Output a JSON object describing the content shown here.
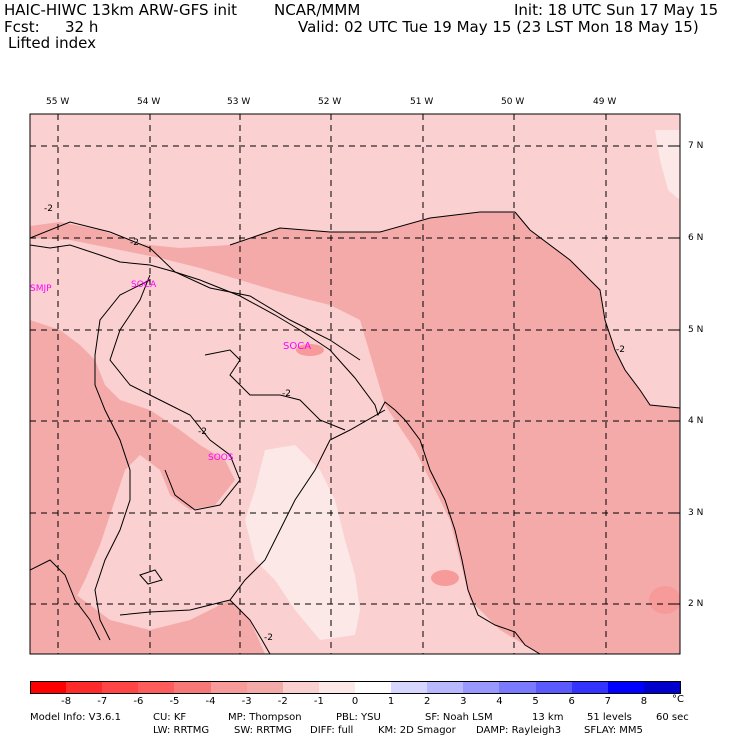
{
  "header": {
    "model": "HAIC-HIWC 13km ARW-GFS init",
    "org": "NCAR/MMM",
    "init": "Init: 18 UTC Sun 17 May 15",
    "fcst_label": "Fcst:",
    "fcst_value": "32 h",
    "valid": "Valid: 02 UTC Tue 19 May 15 (23 LST Mon 18 May 15)",
    "field": "Lifted index"
  },
  "longitude_labels": [
    "55 W",
    "54 W",
    "53 W",
    "52 W",
    "51 W",
    "50 W",
    "49 W"
  ],
  "latitude_labels": [
    "7 N",
    "6 N",
    "5 N",
    "4 N",
    "3 N",
    "2 N"
  ],
  "stations": [
    "SMJP",
    "SOCA",
    "SOCA",
    "SOOS"
  ],
  "contour_labels": [
    "-2",
    "-2",
    "-2",
    "-2",
    "-2",
    "-2",
    "-2"
  ],
  "colorbar": {
    "labels": [
      "-8",
      "-7",
      "-6",
      "-5",
      "-4",
      "-3",
      "-2",
      "-1",
      "0",
      "1",
      "2",
      "3",
      "4",
      "5",
      "6",
      "7",
      "8"
    ],
    "unit": "°C",
    "colors": [
      "#ff0000",
      "#ff2a2a",
      "#ff4545",
      "#ff5c5c",
      "#f87878",
      "#f79a9a",
      "#f5aaaa",
      "#fbd0d0",
      "#fde8e8",
      "#ffffff",
      "#d6d6ff",
      "#b8b8ff",
      "#9898ff",
      "#7a7aff",
      "#5a5aff",
      "#3434ff",
      "#0000ff",
      "#0000cc"
    ]
  },
  "footer": {
    "line1": [
      "Model Info: V3.6.1",
      "CU: KF",
      "MP: Thompson",
      "PBL: YSU",
      "SF: Noah LSM",
      "13 km",
      "51 levels",
      "60 sec"
    ],
    "line2": [
      "LW: RRTMG",
      "SW: RRTMG",
      "DIFF: full",
      "KM: 2D Smagor",
      "DAMP: Rayleigh3",
      "SFLAY: MM5"
    ]
  }
}
